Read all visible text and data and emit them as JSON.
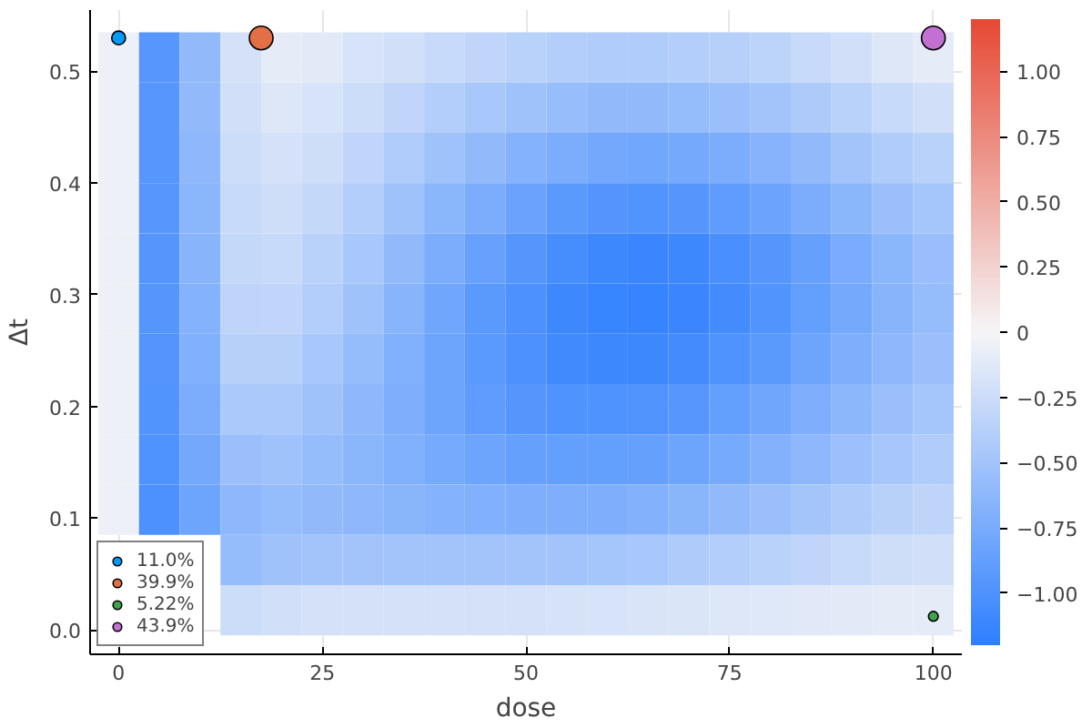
{
  "chart_data": {
    "type": "heatmap",
    "xlabel": "dose",
    "ylabel": "Δt",
    "x": [
      0,
      5,
      10,
      15,
      20,
      25,
      30,
      35,
      40,
      45,
      50,
      55,
      60,
      65,
      70,
      75,
      80,
      85,
      90,
      95,
      100
    ],
    "y": [
      0.5125,
      0.4675,
      0.4225,
      0.3775,
      0.3325,
      0.2875,
      0.2425,
      0.1975,
      0.1525,
      0.1075,
      0.0625,
      0.0175
    ],
    "cells": [
      [
        -0.05,
        -0.95,
        -0.6,
        -0.2,
        -0.1,
        -0.12,
        -0.18,
        -0.22,
        -0.28,
        -0.32,
        -0.36,
        -0.4,
        -0.42,
        -0.42,
        -0.4,
        -0.38,
        -0.34,
        -0.28,
        -0.22,
        -0.15,
        -0.1
      ],
      [
        -0.05,
        -0.95,
        -0.6,
        -0.22,
        -0.15,
        -0.18,
        -0.25,
        -0.32,
        -0.4,
        -0.46,
        -0.52,
        -0.57,
        -0.6,
        -0.6,
        -0.58,
        -0.55,
        -0.5,
        -0.44,
        -0.36,
        -0.28,
        -0.22
      ],
      [
        -0.05,
        -0.95,
        -0.62,
        -0.25,
        -0.2,
        -0.24,
        -0.32,
        -0.42,
        -0.52,
        -0.6,
        -0.68,
        -0.74,
        -0.78,
        -0.79,
        -0.77,
        -0.73,
        -0.67,
        -0.6,
        -0.5,
        -0.42,
        -0.36
      ],
      [
        -0.05,
        -0.95,
        -0.64,
        -0.28,
        -0.24,
        -0.3,
        -0.4,
        -0.52,
        -0.64,
        -0.74,
        -0.84,
        -0.92,
        -0.97,
        -0.98,
        -0.96,
        -0.9,
        -0.83,
        -0.74,
        -0.64,
        -0.55,
        -0.48
      ],
      [
        -0.05,
        -0.96,
        -0.66,
        -0.3,
        -0.28,
        -0.36,
        -0.46,
        -0.6,
        -0.73,
        -0.85,
        -0.96,
        -1.05,
        -1.1,
        -1.12,
        -1.1,
        -1.04,
        -0.96,
        -0.86,
        -0.75,
        -0.64,
        -0.56
      ],
      [
        -0.05,
        -0.96,
        -0.68,
        -0.33,
        -0.32,
        -0.4,
        -0.52,
        -0.66,
        -0.8,
        -0.92,
        -1.02,
        -1.1,
        -1.14,
        -1.15,
        -1.12,
        -1.06,
        -0.98,
        -0.88,
        -0.77,
        -0.66,
        -0.58
      ],
      [
        -0.05,
        -0.97,
        -0.7,
        -0.38,
        -0.38,
        -0.46,
        -0.58,
        -0.7,
        -0.82,
        -0.93,
        -1.02,
        -1.08,
        -1.1,
        -1.1,
        -1.06,
        -1.0,
        -0.92,
        -0.82,
        -0.72,
        -0.62,
        -0.55
      ],
      [
        -0.05,
        -0.98,
        -0.74,
        -0.45,
        -0.45,
        -0.52,
        -0.62,
        -0.72,
        -0.82,
        -0.9,
        -0.96,
        -1.0,
        -1.0,
        -0.98,
        -0.95,
        -0.88,
        -0.8,
        -0.72,
        -0.63,
        -0.55,
        -0.48
      ],
      [
        -0.05,
        -1.0,
        -0.78,
        -0.55,
        -0.52,
        -0.58,
        -0.64,
        -0.7,
        -0.76,
        -0.82,
        -0.86,
        -0.88,
        -0.88,
        -0.86,
        -0.82,
        -0.76,
        -0.69,
        -0.62,
        -0.54,
        -0.47,
        -0.42
      ],
      [
        -0.05,
        -1.02,
        -0.82,
        -0.62,
        -0.58,
        -0.6,
        -0.62,
        -0.65,
        -0.68,
        -0.7,
        -0.72,
        -0.72,
        -0.71,
        -0.69,
        -0.65,
        -0.6,
        -0.55,
        -0.49,
        -0.43,
        -0.37,
        -0.33
      ],
      [
        null,
        null,
        null,
        -0.58,
        -0.52,
        -0.5,
        -0.5,
        -0.5,
        -0.5,
        -0.5,
        -0.5,
        -0.5,
        -0.48,
        -0.46,
        -0.43,
        -0.4,
        -0.36,
        -0.32,
        -0.28,
        -0.24,
        -0.22
      ],
      [
        null,
        null,
        null,
        -0.25,
        -0.22,
        -0.2,
        -0.2,
        -0.2,
        -0.2,
        -0.2,
        -0.2,
        -0.19,
        -0.18,
        -0.17,
        -0.16,
        -0.15,
        -0.14,
        -0.13,
        -0.12,
        -0.1,
        -0.1
      ]
    ],
    "clim": [
      -1.2,
      1.2
    ],
    "cticks": [
      {
        "value": -1,
        "label": "−1.00"
      },
      {
        "value": -0.75,
        "label": "−0.75"
      },
      {
        "value": -0.5,
        "label": "−0.50"
      },
      {
        "value": -0.25,
        "label": "−0.25"
      },
      {
        "value": 0,
        "label": "0"
      },
      {
        "value": 0.25,
        "label": "0.25"
      },
      {
        "value": 0.5,
        "label": "0.50"
      },
      {
        "value": 0.75,
        "label": "0.75"
      },
      {
        "value": 1,
        "label": "1.00"
      }
    ],
    "xlim": [
      -3.5,
      103.5
    ],
    "ylim": [
      -0.022,
      0.555
    ],
    "xticks": [
      0,
      25,
      50,
      75,
      100
    ],
    "yticks": [
      {
        "value": 0,
        "label": "0.0"
      },
      {
        "value": 0.1,
        "label": "0.1"
      },
      {
        "value": 0.2,
        "label": "0.2"
      },
      {
        "value": 0.3,
        "label": "0.3"
      },
      {
        "value": 0.4,
        "label": "0.4"
      },
      {
        "value": 0.5,
        "label": "0.5"
      }
    ],
    "grid": true,
    "legend": "bottom left",
    "series": [
      {
        "type": "bubble",
        "name": "11.0%",
        "color": "#009af9",
        "x": [
          0
        ],
        "values": [
          0.53
        ],
        "sizes": [
          0.34
        ]
      },
      {
        "type": "bubble",
        "name": "39.9%",
        "color": "#e26f46",
        "x": [
          17.5
        ],
        "values": [
          0.53
        ],
        "sizes": [
          1
        ]
      },
      {
        "type": "bubble",
        "name": "5.22%",
        "color": "#3da44d",
        "x": [
          100
        ],
        "values": [
          0.012
        ],
        "sizes": [
          0.17
        ]
      },
      {
        "type": "bubble",
        "name": "43.9%",
        "color": "#c271d2",
        "x": [
          100
        ],
        "values": [
          0.53
        ],
        "sizes": [
          1
        ]
      }
    ]
  }
}
